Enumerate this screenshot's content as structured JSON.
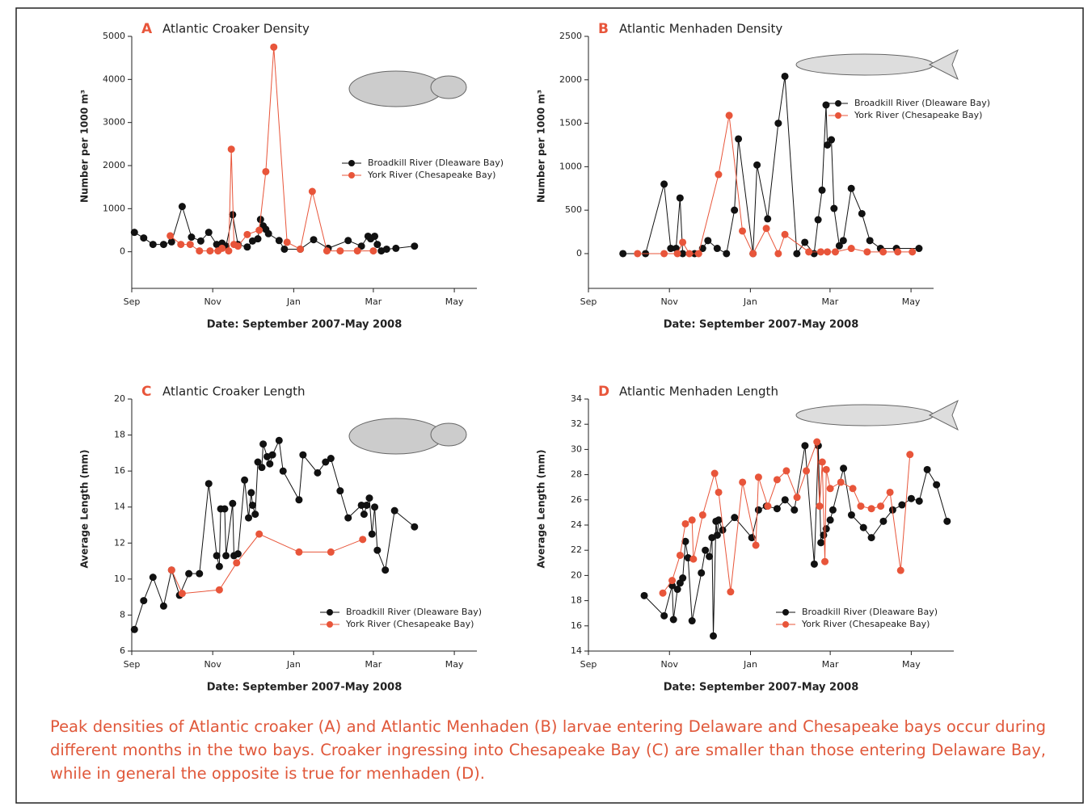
{
  "chart_data": [
    {
      "type": "line",
      "panel": "A",
      "title": "Atlantic Croaker Density",
      "xlabel": "Date: September 2007-May 2008",
      "ylabel": "Number per 1000 m³",
      "xlim": [
        0,
        260
      ],
      "xticks": [
        {
          "value": 0,
          "label": "Sep"
        },
        {
          "value": 61,
          "label": "Nov"
        },
        {
          "value": 122,
          "label": "Jan"
        },
        {
          "value": 182,
          "label": "Mar"
        },
        {
          "value": 243,
          "label": "May"
        }
      ],
      "ylim": [
        -850,
        5000
      ],
      "yticks": [
        0,
        1000,
        2000,
        3000,
        4000,
        5000
      ],
      "series": [
        {
          "name": "Broadkill River (Dleaware Bay)",
          "color": "#111111",
          "x": [
            2,
            9,
            16,
            24,
            30,
            38,
            45,
            52,
            58,
            64,
            68,
            71,
            76,
            80,
            87,
            91,
            95,
            97,
            99,
            101,
            103,
            111,
            115,
            127,
            137,
            148,
            163,
            173,
            178,
            180,
            183,
            185,
            188,
            192,
            199,
            213
          ],
          "values": [
            450,
            320,
            170,
            170,
            230,
            1050,
            340,
            250,
            450,
            170,
            200,
            130,
            860,
            170,
            110,
            250,
            300,
            750,
            600,
            520,
            420,
            260,
            60,
            60,
            280,
            80,
            260,
            130,
            360,
            300,
            360,
            170,
            20,
            60,
            80,
            130
          ]
        },
        {
          "name": "York River (Chesapeake Bay)",
          "color": "#e8553a",
          "x": [
            29,
            37,
            44,
            51,
            59,
            65,
            68,
            73,
            75,
            77,
            80,
            87,
            96,
            101,
            107,
            117,
            127,
            136,
            147,
            157,
            170,
            182
          ],
          "values": [
            370,
            170,
            170,
            20,
            20,
            20,
            80,
            20,
            2380,
            170,
            130,
            400,
            500,
            1860,
            4750,
            220,
            60,
            1400,
            20,
            20,
            20,
            20
          ]
        }
      ]
    },
    {
      "type": "line",
      "panel": "B",
      "title": "Atlantic Menhaden Density",
      "xlabel": "Date: September 2007-May 2008",
      "ylabel": "Number per 1000 m³",
      "xlim": [
        0,
        260
      ],
      "xticks": [
        {
          "value": 0,
          "label": "Sep"
        },
        {
          "value": 61,
          "label": "Nov"
        },
        {
          "value": 122,
          "label": "Jan"
        },
        {
          "value": 182,
          "label": "Mar"
        },
        {
          "value": 243,
          "label": "May"
        }
      ],
      "ylim": [
        -400,
        2500
      ],
      "yticks": [
        0,
        500,
        1000,
        1500,
        2000,
        2500
      ],
      "series": [
        {
          "name": "Broadkill River (Dleaware Bay)",
          "color": "#111111",
          "x": [
            26,
            43,
            57,
            62,
            66,
            69,
            71,
            80,
            86,
            90,
            97,
            104,
            110,
            113,
            124,
            127,
            135,
            143,
            148,
            157,
            163,
            170,
            173,
            176,
            179,
            180,
            183,
            185,
            189,
            192,
            198,
            206,
            212,
            220,
            232,
            249
          ],
          "values": [
            0,
            0,
            800,
            60,
            60,
            640,
            0,
            0,
            60,
            150,
            60,
            0,
            500,
            1320,
            0,
            1020,
            400,
            1500,
            2040,
            0,
            130,
            0,
            390,
            730,
            1710,
            1250,
            1310,
            520,
            90,
            150,
            750,
            460,
            150,
            60,
            60,
            60
          ]
        },
        {
          "name": "York River (Chesapeake Bay)",
          "color": "#e8553a",
          "x": [
            37,
            57,
            67,
            71,
            76,
            83,
            98,
            106,
            116,
            124,
            134,
            143,
            148,
            166,
            175,
            180,
            186,
            198,
            210,
            222,
            233,
            244
          ],
          "values": [
            0,
            0,
            0,
            130,
            0,
            0,
            910,
            1590,
            260,
            0,
            290,
            0,
            220,
            20,
            20,
            20,
            20,
            60,
            20,
            20,
            20,
            20
          ]
        }
      ]
    },
    {
      "type": "line",
      "panel": "C",
      "title": "Atlantic Croaker Length",
      "xlabel": "Date: September 2007-May 2008",
      "ylabel": "Average Length (mm)",
      "xlim": [
        0,
        260
      ],
      "xticks": [
        {
          "value": 0,
          "label": "Sep"
        },
        {
          "value": 61,
          "label": "Nov"
        },
        {
          "value": 122,
          "label": "Jan"
        },
        {
          "value": 182,
          "label": "Mar"
        },
        {
          "value": 243,
          "label": "May"
        }
      ],
      "ylim": [
        6,
        20
      ],
      "yticks": [
        6,
        8,
        10,
        12,
        14,
        16,
        18,
        20
      ],
      "series": [
        {
          "name": "Broadkill River (Dleaware Bay)",
          "color": "#111111",
          "x": [
            2,
            9,
            16,
            24,
            30,
            36,
            43,
            51,
            58,
            64,
            66,
            67,
            70,
            71,
            76,
            77,
            80,
            85,
            88,
            90,
            91,
            93,
            95,
            98,
            99,
            102,
            104,
            106,
            111,
            114,
            126,
            129,
            140,
            146,
            150,
            157,
            163,
            173,
            175,
            177,
            179,
            181,
            183,
            185,
            191,
            198,
            213
          ],
          "values": [
            7.2,
            8.8,
            10.1,
            8.5,
            10.5,
            9.1,
            10.3,
            10.3,
            15.3,
            11.3,
            10.7,
            13.9,
            13.9,
            11.3,
            14.2,
            11.3,
            11.4,
            15.5,
            13.4,
            14.8,
            14.1,
            13.6,
            16.5,
            16.2,
            17.5,
            16.8,
            16.4,
            16.9,
            17.7,
            16.0,
            14.4,
            16.9,
            15.9,
            16.5,
            16.7,
            14.9,
            13.4,
            14.1,
            13.6,
            14.1,
            14.5,
            12.5,
            14.0,
            11.6,
            10.5,
            13.8,
            12.9
          ]
        },
        {
          "name": "York River (Chesapeake Bay)",
          "color": "#e8553a",
          "x": [
            30,
            38,
            66,
            79,
            96,
            126,
            150,
            174
          ],
          "values": [
            10.5,
            9.2,
            9.4,
            10.9,
            12.5,
            11.5,
            11.5,
            12.2
          ]
        }
      ]
    },
    {
      "type": "line",
      "panel": "D",
      "title": "Atlantic Menhaden Length",
      "xlabel": "Date: September 2007-May 2008",
      "ylabel": "Average Length (mm)",
      "xlim": [
        0,
        275
      ],
      "xticks": [
        {
          "value": 0,
          "label": "Sep"
        },
        {
          "value": 61,
          "label": "Nov"
        },
        {
          "value": 122,
          "label": "Jan"
        },
        {
          "value": 182,
          "label": "Mar"
        },
        {
          "value": 243,
          "label": "May"
        }
      ],
      "ylim": [
        14,
        34
      ],
      "yticks": [
        14,
        16,
        18,
        20,
        22,
        24,
        26,
        28,
        30,
        32,
        34
      ],
      "series": [
        {
          "name": "Broadkill River (Dleaware Bay)",
          "color": "#111111",
          "x": [
            42,
            57,
            63,
            64,
            67,
            69,
            71,
            73,
            75,
            78,
            85,
            88,
            91,
            93,
            94,
            96,
            97,
            98,
            101,
            110,
            123,
            128,
            134,
            142,
            148,
            155,
            163,
            170,
            173,
            175,
            177,
            179,
            182,
            184,
            192,
            198,
            207,
            213,
            222,
            229,
            236,
            243,
            249,
            255,
            262,
            270
          ],
          "values": [
            18.4,
            16.8,
            19.2,
            16.5,
            18.9,
            19.4,
            19.8,
            22.7,
            21.4,
            16.4,
            20.2,
            22.0,
            21.5,
            23.0,
            15.2,
            24.3,
            23.2,
            24.4,
            23.6,
            24.6,
            23.0,
            25.2,
            25.5,
            25.3,
            26.0,
            25.2,
            30.3,
            20.9,
            30.3,
            22.6,
            23.2,
            23.7,
            24.4,
            25.2,
            28.5,
            24.8,
            23.8,
            23.0,
            24.3,
            25.2,
            25.6,
            26.1,
            25.9,
            28.4,
            27.2,
            24.3
          ]
        },
        {
          "name": "York River (Chesapeake Bay)",
          "color": "#e8553a",
          "x": [
            56,
            63,
            69,
            73,
            78,
            79,
            86,
            95,
            98,
            107,
            116,
            126,
            128,
            135,
            142,
            149,
            157,
            164,
            172,
            174,
            176,
            178,
            179,
            182,
            190,
            199,
            205,
            213,
            220,
            227,
            235,
            242
          ],
          "values": [
            18.6,
            19.6,
            21.6,
            24.1,
            24.4,
            21.3,
            24.8,
            28.1,
            26.6,
            18.7,
            27.4,
            22.4,
            27.8,
            25.5,
            27.6,
            28.3,
            26.2,
            28.3,
            30.6,
            25.5,
            29.0,
            21.1,
            28.4,
            26.9,
            27.4,
            26.9,
            25.5,
            25.3,
            25.5,
            26.6,
            20.4,
            29.6
          ]
        }
      ]
    }
  ],
  "caption": "Peak densities of Atlantic croaker (A) and Atlantic Menhaden (B) larvae entering Delaware and Chesapeake bays occur during different months in the two bays. Croaker ingressing into Chesapeake Bay (C) are smaller than those entering Delaware Bay, while in general the opposite is true for menhaden (D)."
}
